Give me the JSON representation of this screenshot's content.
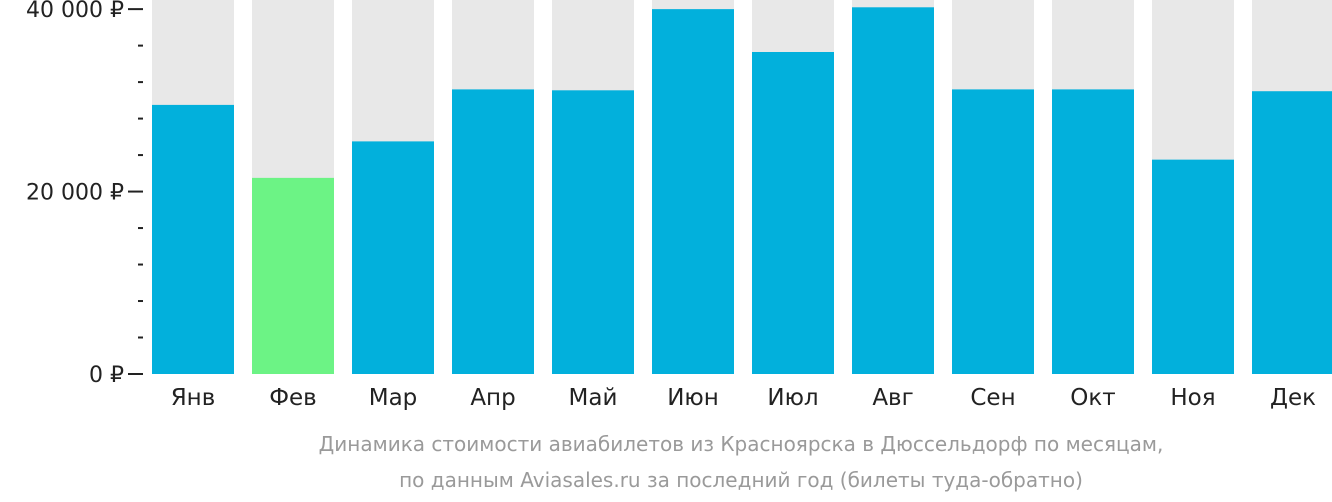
{
  "chart_data": {
    "type": "bar",
    "categories": [
      "Янв",
      "Фев",
      "Мар",
      "Апр",
      "Май",
      "Июн",
      "Июл",
      "Авг",
      "Сен",
      "Окт",
      "Ноя",
      "Дек"
    ],
    "values": [
      29500,
      21500,
      25500,
      31200,
      31100,
      40000,
      35300,
      40200,
      31200,
      31200,
      23500,
      31000
    ],
    "highlight_index": 1,
    "ylim": [
      0,
      41000
    ],
    "yticks": [
      {
        "value": 0,
        "label": "0 ₽"
      },
      {
        "value": 20000,
        "label": "20 000 ₽"
      },
      {
        "value": 40000,
        "label": "40 000 ₽"
      }
    ],
    "minor_tick_step": 4000,
    "colors": {
      "bar": "#02b0dc",
      "highlight": "#6cf385",
      "background_bar": "#e8e8e8"
    },
    "caption_lines": [
      "Динамика стоимости авиабилетов из Красноярска в Дюссельдорф по месяцам,",
      "по данным Aviasales.ru за последний год (билеты туда-обратно)"
    ]
  }
}
